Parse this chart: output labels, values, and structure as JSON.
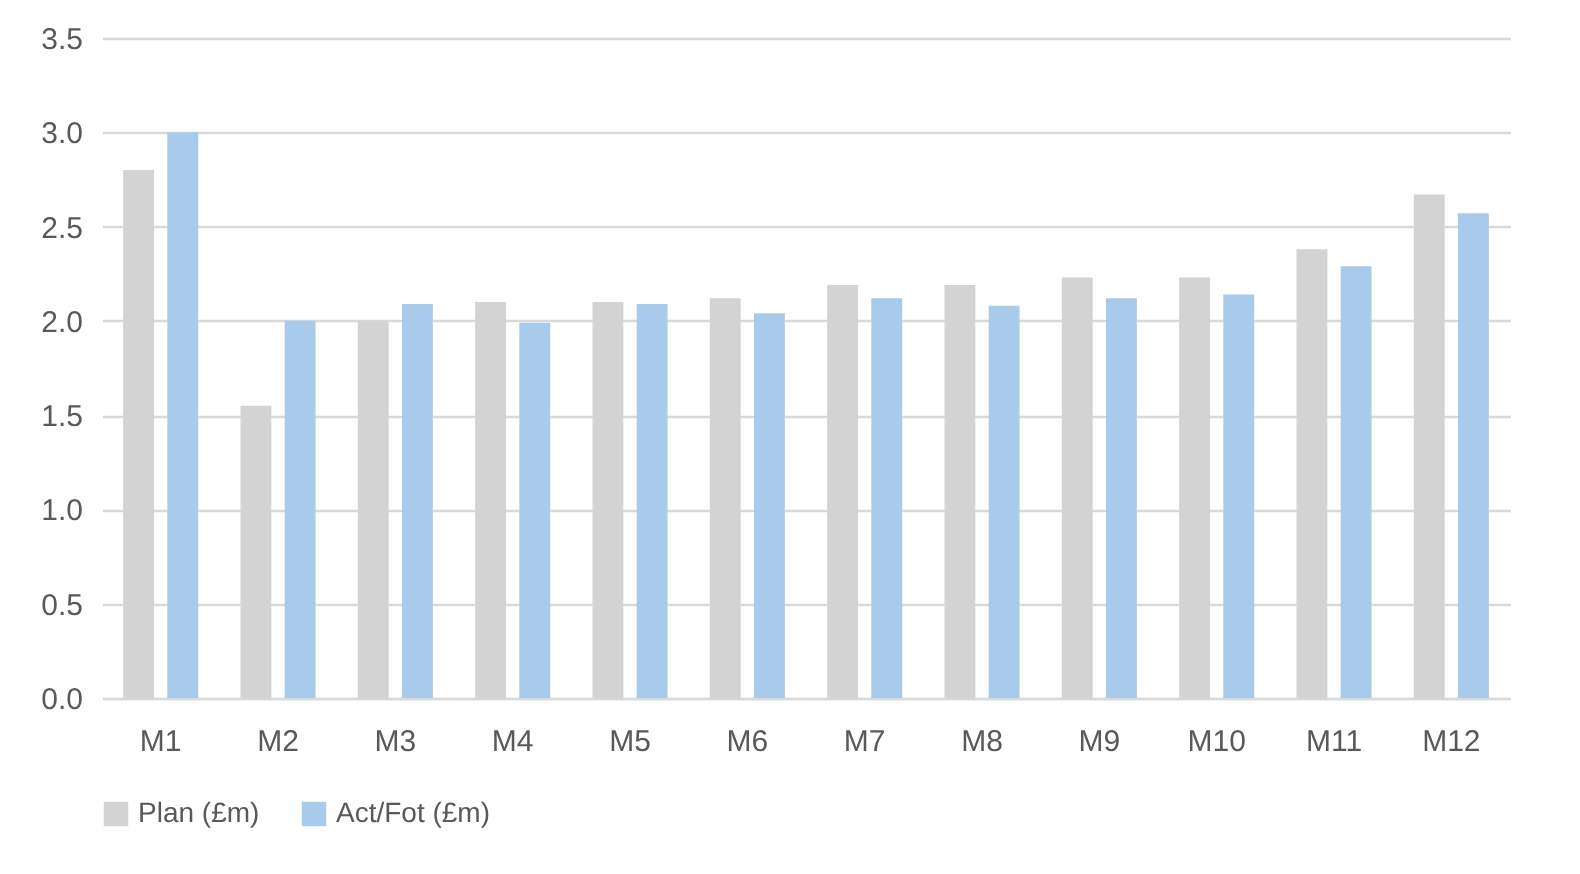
{
  "chart_data": {
    "type": "bar",
    "categories": [
      "M1",
      "M2",
      "M3",
      "M4",
      "M5",
      "M6",
      "M7",
      "M8",
      "M9",
      "M10",
      "M11",
      "M12"
    ],
    "series": [
      {
        "name": "Plan (£m)",
        "color": "#d3d3d3",
        "values": [
          2.8,
          1.55,
          2.0,
          2.1,
          2.1,
          2.12,
          2.19,
          2.19,
          2.23,
          2.23,
          2.38,
          2.67
        ]
      },
      {
        "name": "Act/Fot (£m)",
        "color": "#a9cbeb",
        "values": [
          3.0,
          2.0,
          2.09,
          1.99,
          2.09,
          2.04,
          2.12,
          2.08,
          2.12,
          2.14,
          2.29,
          2.57
        ]
      }
    ],
    "ylim": [
      0,
      3.5
    ],
    "yticks": [
      {
        "value": 0,
        "label": "0.0"
      },
      {
        "value": 0.5,
        "label": "0.5"
      },
      {
        "value": 1,
        "label": "1.0"
      },
      {
        "value": 1.5,
        "label": "1.5"
      },
      {
        "value": 2,
        "label": "2.0"
      },
      {
        "value": 2.5,
        "label": "2.5"
      },
      {
        "value": 3,
        "label": "3.0"
      },
      {
        "value": 3.5,
        "label": "3.5"
      }
    ],
    "grid": "y",
    "legend": "bottom"
  }
}
